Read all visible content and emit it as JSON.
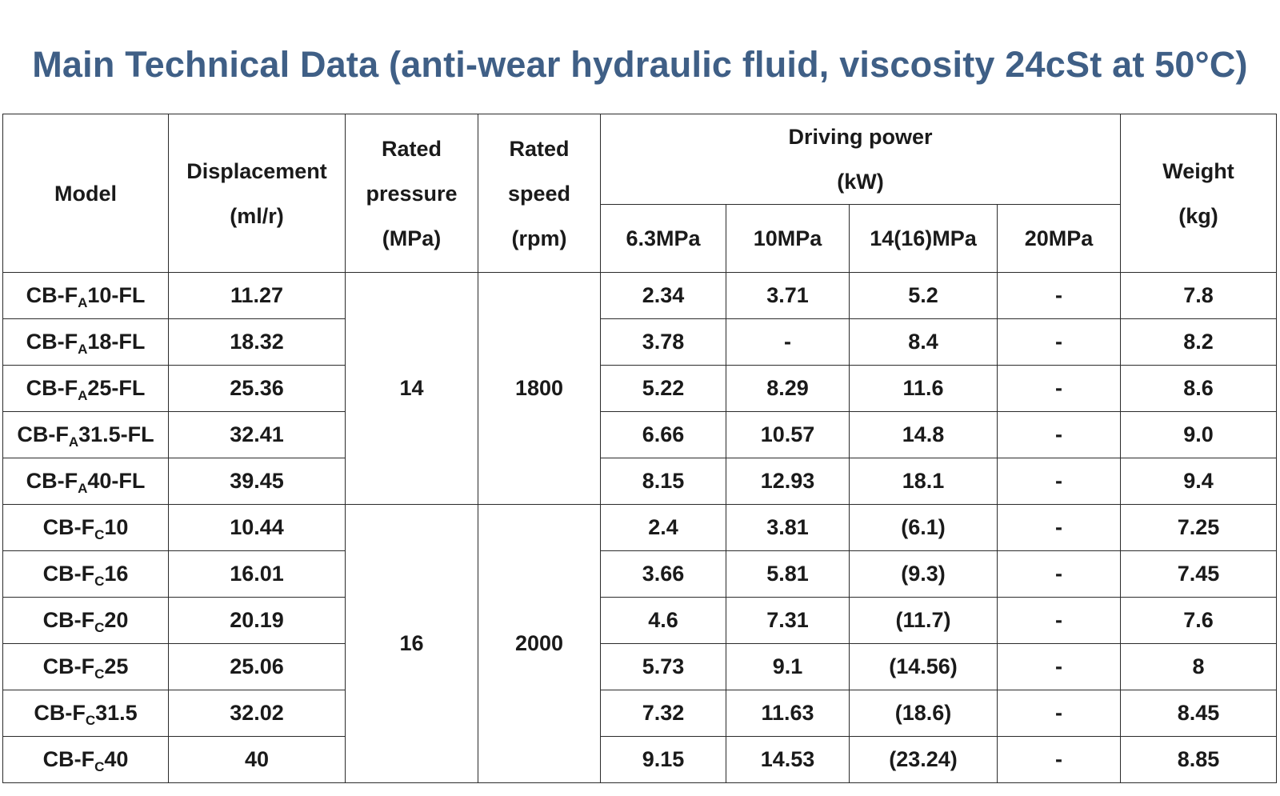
{
  "title": "Main Technical Data (anti-wear hydraulic fluid, viscosity 24cSt at 50°C)",
  "headers": {
    "model": "Model",
    "displacement_l1": "Displacement",
    "displacement_l2": "(ml/r)",
    "pressure_l1": "Rated",
    "pressure_l2": "pressure",
    "pressure_l3": "(MPa)",
    "speed_l1": "Rated",
    "speed_l2": "speed",
    "speed_l3": "(rpm)",
    "power_l1": "Driving power",
    "power_l2": "(kW)",
    "power_sub": [
      "6.3MPa",
      "10MPa",
      "14(16)MPa",
      "20MPa"
    ],
    "weight_l1": "Weight",
    "weight_l2": "(kg)"
  },
  "groups": [
    {
      "rated_pressure": "14",
      "rated_speed": "1800",
      "rows": [
        {
          "model_pre": "CB-F",
          "model_sub": "A",
          "model_post": "10-FL",
          "displacement": "11.27",
          "p63": "2.34",
          "p10": "3.71",
          "p14": "5.2",
          "p20": "-",
          "weight": "7.8"
        },
        {
          "model_pre": "CB-F",
          "model_sub": "A",
          "model_post": "18-FL",
          "displacement": "18.32",
          "p63": "3.78",
          "p10": "-",
          "p14": "8.4",
          "p20": "-",
          "weight": "8.2"
        },
        {
          "model_pre": "CB-F",
          "model_sub": "A",
          "model_post": "25-FL",
          "displacement": "25.36",
          "p63": "5.22",
          "p10": "8.29",
          "p14": "11.6",
          "p20": "-",
          "weight": "8.6"
        },
        {
          "model_pre": "CB-F",
          "model_sub": "A",
          "model_post": "31.5-FL",
          "displacement": "32.41",
          "p63": "6.66",
          "p10": "10.57",
          "p14": "14.8",
          "p20": "-",
          "weight": "9.0"
        },
        {
          "model_pre": "CB-F",
          "model_sub": "A",
          "model_post": "40-FL",
          "displacement": "39.45",
          "p63": "8.15",
          "p10": "12.93",
          "p14": "18.1",
          "p20": "-",
          "weight": "9.4"
        }
      ]
    },
    {
      "rated_pressure": "16",
      "rated_speed": "2000",
      "rows": [
        {
          "model_pre": "CB-F",
          "model_sub": "C",
          "model_post": "10",
          "displacement": "10.44",
          "p63": "2.4",
          "p10": "3.81",
          "p14": "(6.1)",
          "p20": "-",
          "weight": "7.25"
        },
        {
          "model_pre": "CB-F",
          "model_sub": "C",
          "model_post": "16",
          "displacement": "16.01",
          "p63": "3.66",
          "p10": "5.81",
          "p14": "(9.3)",
          "p20": "-",
          "weight": "7.45"
        },
        {
          "model_pre": "CB-F",
          "model_sub": "C",
          "model_post": "20",
          "displacement": "20.19",
          "p63": "4.6",
          "p10": "7.31",
          "p14": "(11.7)",
          "p20": "-",
          "weight": "7.6"
        },
        {
          "model_pre": "CB-F",
          "model_sub": "C",
          "model_post": "25",
          "displacement": "25.06",
          "p63": "5.73",
          "p10": "9.1",
          "p14": "(14.56)",
          "p20": "-",
          "weight": "8"
        },
        {
          "model_pre": "CB-F",
          "model_sub": "C",
          "model_post": "31.5",
          "displacement": "32.02",
          "p63": "7.32",
          "p10": "11.63",
          "p14": "(18.6)",
          "p20": "-",
          "weight": "8.45"
        },
        {
          "model_pre": "CB-F",
          "model_sub": "C",
          "model_post": "40",
          "displacement": "40",
          "p63": "9.15",
          "p10": "14.53",
          "p14": "(23.24)",
          "p20": "-",
          "weight": "8.85"
        }
      ]
    }
  ]
}
